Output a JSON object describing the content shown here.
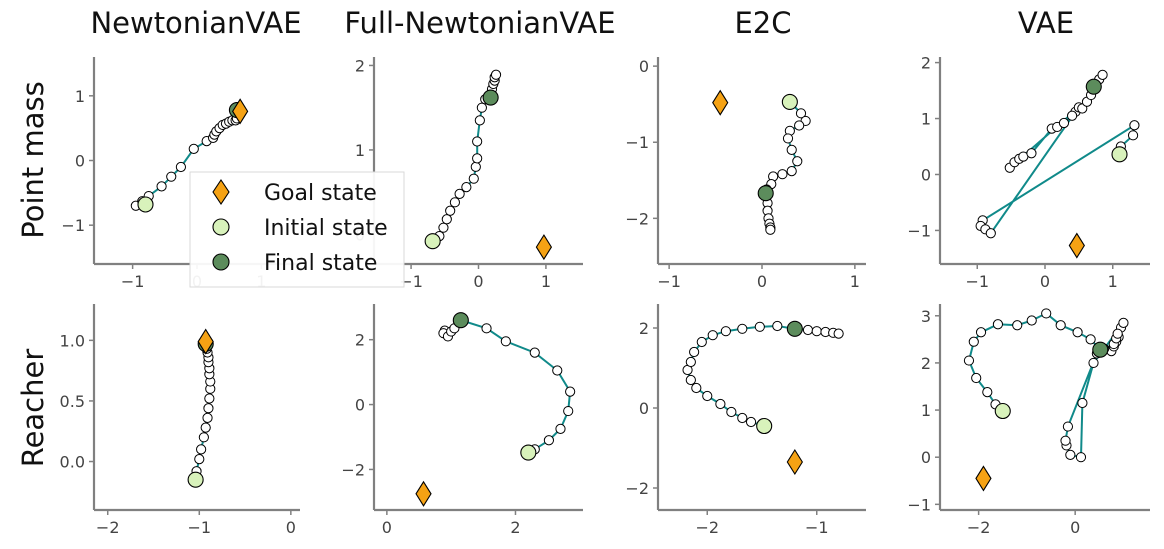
{
  "colors": {
    "trajectory": "#108a8a",
    "goal": "#f5a214",
    "initial": "#d8f2bb",
    "final": "#5c8c5c",
    "intermediate": "#ffffff",
    "axis": "#808080"
  },
  "column_titles": [
    "NewtonianVAE",
    "Full-NewtonianVAE",
    "E2C",
    "VAE"
  ],
  "row_titles": [
    "Point mass",
    "Reacher"
  ],
  "legend": {
    "placement": "overlapping Point mass row, NewtonianVAE / Full-NewtonianVAE panels",
    "items": [
      {
        "label": "Goal state",
        "marker": "diamond"
      },
      {
        "label": "Initial state",
        "marker": "circle-light"
      },
      {
        "label": "Final state",
        "marker": "circle-dark"
      }
    ]
  },
  "chart_data": [
    {
      "type": "scatter",
      "row": "Point mass",
      "column": "NewtonianVAE",
      "xlim": [
        -1.6,
        1.6
      ],
      "ylim": [
        -1.6,
        1.6
      ],
      "xticks": [
        -1,
        0,
        1
      ],
      "yticks": [
        -1,
        0,
        1
      ],
      "xtick_labels": [
        "−1",
        "0",
        "1"
      ],
      "ytick_labels": [
        "−1",
        "0",
        "1"
      ],
      "goal": [
        0.67,
        0.76
      ],
      "initial": [
        -0.8,
        -0.68
      ],
      "final": [
        0.62,
        0.78
      ],
      "trajectory": [
        [
          -0.8,
          -0.68
        ],
        [
          -0.95,
          -0.7
        ],
        [
          -0.85,
          -0.63
        ],
        [
          -0.75,
          -0.55
        ],
        [
          -0.55,
          -0.4
        ],
        [
          -0.4,
          -0.25
        ],
        [
          -0.25,
          -0.1
        ],
        [
          -0.05,
          0.18
        ],
        [
          0.15,
          0.3
        ],
        [
          0.25,
          0.35
        ],
        [
          0.27,
          0.4
        ],
        [
          0.3,
          0.45
        ],
        [
          0.35,
          0.5
        ],
        [
          0.4,
          0.55
        ],
        [
          0.45,
          0.57
        ],
        [
          0.5,
          0.6
        ],
        [
          0.55,
          0.62
        ],
        [
          0.6,
          0.62
        ],
        [
          0.62,
          0.65
        ],
        [
          0.62,
          0.78
        ]
      ]
    },
    {
      "type": "scatter",
      "row": "Point mass",
      "column": "Full-NewtonianVAE",
      "xlim": [
        -1.55,
        1.55
      ],
      "ylim": [
        -0.35,
        2.1
      ],
      "xticks": [
        -1,
        0,
        1
      ],
      "yticks": [
        0,
        1,
        2
      ],
      "xtick_labels": [
        "−1",
        "0",
        "1"
      ],
      "ytick_labels": [
        "0",
        "1",
        "2"
      ],
      "goal": [
        0.97,
        -0.15
      ],
      "initial": [
        -0.68,
        -0.08
      ],
      "final": [
        0.18,
        1.62
      ],
      "trajectory": [
        [
          -0.68,
          -0.08
        ],
        [
          -0.58,
          -0.02
        ],
        [
          -0.52,
          0.08
        ],
        [
          -0.47,
          0.18
        ],
        [
          -0.42,
          0.28
        ],
        [
          -0.35,
          0.38
        ],
        [
          -0.28,
          0.48
        ],
        [
          -0.18,
          0.56
        ],
        [
          -0.07,
          0.66
        ],
        [
          -0.04,
          0.8
        ],
        [
          -0.02,
          0.9
        ],
        [
          -0.02,
          1.1
        ],
        [
          0.02,
          1.35
        ],
        [
          0.05,
          1.5
        ],
        [
          0.1,
          1.6
        ],
        [
          0.18,
          1.62
        ],
        [
          0.2,
          1.72
        ],
        [
          0.22,
          1.78
        ],
        [
          0.24,
          1.82
        ],
        [
          0.24,
          1.86
        ],
        [
          0.26,
          1.89
        ]
      ]
    },
    {
      "type": "scatter",
      "row": "Point mass",
      "column": "E2C",
      "xlim": [
        -1.12,
        1.12
      ],
      "ylim": [
        -2.6,
        0.12
      ],
      "xticks": [
        -1,
        0,
        1
      ],
      "yticks": [
        -2,
        -1,
        0
      ],
      "xtick_labels": [
        "−1",
        "0",
        "1"
      ],
      "ytick_labels": [
        "−2",
        "−1",
        "0"
      ],
      "goal": [
        -0.45,
        -0.48
      ],
      "initial": [
        0.3,
        -0.47
      ],
      "final": [
        0.04,
        -1.67
      ],
      "trajectory": [
        [
          0.3,
          -0.47
        ],
        [
          0.42,
          -0.62
        ],
        [
          0.47,
          -0.72
        ],
        [
          0.4,
          -0.78
        ],
        [
          0.3,
          -0.85
        ],
        [
          0.28,
          -0.95
        ],
        [
          0.32,
          -1.1
        ],
        [
          0.38,
          -1.25
        ],
        [
          0.32,
          -1.38
        ],
        [
          0.22,
          -1.42
        ],
        [
          0.12,
          -1.45
        ],
        [
          0.1,
          -1.55
        ],
        [
          0.05,
          -1.62
        ],
        [
          0.04,
          -1.67
        ],
        [
          0.06,
          -1.8
        ],
        [
          0.06,
          -1.9
        ],
        [
          0.07,
          -2.0
        ],
        [
          0.08,
          -2.07
        ],
        [
          0.09,
          -2.12
        ],
        [
          0.09,
          -2.15
        ]
      ]
    },
    {
      "type": "scatter",
      "row": "Point mass",
      "column": "VAE",
      "xlim": [
        -1.55,
        1.55
      ],
      "ylim": [
        -1.6,
        2.1
      ],
      "xticks": [
        -1,
        0,
        1
      ],
      "yticks": [
        -1,
        0,
        1,
        2
      ],
      "xtick_labels": [
        "−1",
        "0",
        "1"
      ],
      "ytick_labels": [
        "−1",
        "0",
        "1",
        "2"
      ],
      "goal": [
        0.47,
        -1.27
      ],
      "initial": [
        1.1,
        0.36
      ],
      "final": [
        0.72,
        1.57
      ],
      "trajectory": [
        [
          1.1,
          0.36
        ],
        [
          1.12,
          0.5
        ],
        [
          1.3,
          0.7
        ],
        [
          1.32,
          0.88
        ],
        [
          -0.92,
          -0.82
        ],
        [
          -0.95,
          -0.92
        ],
        [
          -0.88,
          -0.98
        ],
        [
          -0.8,
          -1.05
        ],
        [
          0.45,
          1.12
        ],
        [
          0.5,
          1.2
        ],
        [
          -0.52,
          0.12
        ],
        [
          -0.45,
          0.22
        ],
        [
          -0.38,
          0.28
        ],
        [
          -0.32,
          0.32
        ],
        [
          -0.2,
          0.38
        ],
        [
          0.1,
          0.82
        ],
        [
          0.18,
          0.85
        ],
        [
          0.28,
          0.92
        ],
        [
          0.4,
          1.05
        ],
        [
          0.55,
          1.18
        ],
        [
          0.62,
          1.3
        ],
        [
          0.68,
          1.42
        ],
        [
          0.72,
          1.57
        ],
        [
          0.8,
          1.7
        ],
        [
          0.85,
          1.78
        ]
      ]
    },
    {
      "type": "scatter",
      "row": "Reacher",
      "column": "NewtonianVAE",
      "xlim": [
        -2.15,
        0.1
      ],
      "ylim": [
        -0.4,
        1.3
      ],
      "xticks": [
        -2,
        -1,
        0
      ],
      "yticks": [
        0.0,
        0.5,
        1.0
      ],
      "xtick_labels": [
        "−2",
        "−1",
        "0"
      ],
      "ytick_labels": [
        "0.0",
        "0.5",
        "1.0"
      ],
      "goal": [
        -0.93,
        0.99
      ],
      "initial": [
        -1.04,
        -0.15
      ],
      "final": [
        -0.93,
        0.97
      ],
      "trajectory": [
        [
          -1.04,
          -0.15
        ],
        [
          -1.03,
          -0.08
        ],
        [
          -1.0,
          0.02
        ],
        [
          -0.98,
          0.1
        ],
        [
          -0.95,
          0.2
        ],
        [
          -0.93,
          0.28
        ],
        [
          -0.91,
          0.36
        ],
        [
          -0.9,
          0.44
        ],
        [
          -0.89,
          0.52
        ],
        [
          -0.88,
          0.6
        ],
        [
          -0.88,
          0.66
        ],
        [
          -0.89,
          0.72
        ],
        [
          -0.89,
          0.77
        ],
        [
          -0.9,
          0.82
        ],
        [
          -0.9,
          0.86
        ],
        [
          -0.91,
          0.9
        ],
        [
          -0.92,
          0.93
        ],
        [
          -0.93,
          0.97
        ]
      ]
    },
    {
      "type": "scatter",
      "row": "Reacher",
      "column": "Full-NewtonianVAE",
      "xlim": [
        -0.2,
        3.05
      ],
      "ylim": [
        -3.25,
        3.1
      ],
      "xticks": [
        0,
        2
      ],
      "yticks": [
        -2,
        0,
        2
      ],
      "xtick_labels": [
        "0",
        "2"
      ],
      "ytick_labels": [
        "−2",
        "0",
        "2"
      ],
      "goal": [
        0.57,
        -2.75
      ],
      "initial": [
        2.2,
        -1.48
      ],
      "final": [
        1.15,
        2.6
      ],
      "trajectory": [
        [
          0.9,
          2.28
        ],
        [
          0.88,
          2.2
        ],
        [
          0.95,
          2.1
        ],
        [
          1.0,
          2.25
        ],
        [
          1.05,
          2.35
        ],
        [
          1.15,
          2.6
        ],
        [
          1.55,
          2.35
        ],
        [
          1.85,
          1.95
        ],
        [
          2.3,
          1.6
        ],
        [
          2.65,
          1.05
        ],
        [
          2.85,
          0.4
        ],
        [
          2.82,
          -0.2
        ],
        [
          2.7,
          -0.75
        ],
        [
          2.52,
          -1.1
        ],
        [
          2.3,
          -1.38
        ],
        [
          2.2,
          -1.48
        ]
      ]
    },
    {
      "type": "scatter",
      "row": "Reacher",
      "column": "E2C",
      "xlim": [
        -2.45,
        -0.55
      ],
      "ylim": [
        -2.55,
        2.6
      ],
      "xticks": [
        -2,
        -1
      ],
      "yticks": [
        -2,
        0,
        2
      ],
      "xtick_labels": [
        "−2",
        "−1"
      ],
      "ytick_labels": [
        "−2",
        "0",
        "2"
      ],
      "goal": [
        -1.2,
        -1.35
      ],
      "initial": [
        -1.48,
        -0.45
      ],
      "final": [
        -1.2,
        1.98
      ],
      "trajectory": [
        [
          -1.48,
          -0.45
        ],
        [
          -1.6,
          -0.35
        ],
        [
          -1.68,
          -0.25
        ],
        [
          -1.78,
          -0.1
        ],
        [
          -1.88,
          0.1
        ],
        [
          -2.0,
          0.3
        ],
        [
          -2.1,
          0.5
        ],
        [
          -2.15,
          0.7
        ],
        [
          -2.18,
          0.95
        ],
        [
          -2.15,
          1.15
        ],
        [
          -2.12,
          1.4
        ],
        [
          -2.05,
          1.65
        ],
        [
          -1.95,
          1.82
        ],
        [
          -1.83,
          1.92
        ],
        [
          -1.68,
          1.98
        ],
        [
          -1.52,
          2.03
        ],
        [
          -1.36,
          2.05
        ],
        [
          -1.2,
          1.98
        ],
        [
          -1.08,
          1.95
        ],
        [
          -1.0,
          1.92
        ],
        [
          -0.92,
          1.9
        ],
        [
          -0.85,
          1.88
        ],
        [
          -0.8,
          1.86
        ]
      ]
    },
    {
      "type": "scatter",
      "row": "Reacher",
      "column": "VAE",
      "xlim": [
        -2.8,
        1.55
      ],
      "ylim": [
        -1.12,
        3.25
      ],
      "xticks": [
        -2,
        0
      ],
      "yticks": [
        -1,
        0,
        1,
        2,
        3
      ],
      "xtick_labels": [
        "−2",
        "0"
      ],
      "ytick_labels": [
        "−1",
        "0",
        "1",
        "2",
        "3"
      ],
      "goal": [
        -1.9,
        -0.45
      ],
      "initial": [
        -1.5,
        0.98
      ],
      "final": [
        0.52,
        2.28
      ],
      "trajectory": [
        [
          -1.5,
          0.98
        ],
        [
          -1.65,
          1.12
        ],
        [
          -1.82,
          1.38
        ],
        [
          -2.05,
          1.68
        ],
        [
          -2.2,
          2.05
        ],
        [
          -2.1,
          2.45
        ],
        [
          -1.95,
          2.65
        ],
        [
          -1.6,
          2.82
        ],
        [
          -1.2,
          2.8
        ],
        [
          -0.9,
          2.9
        ],
        [
          -0.6,
          3.05
        ],
        [
          -0.3,
          2.8
        ],
        [
          0.05,
          2.65
        ],
        [
          0.32,
          2.5
        ],
        [
          0.52,
          2.28
        ],
        [
          0.75,
          2.25
        ],
        [
          0.8,
          2.35
        ],
        [
          0.85,
          2.45
        ],
        [
          0.9,
          2.55
        ],
        [
          0.95,
          2.75
        ],
        [
          1.0,
          2.85
        ],
        [
          0.38,
          2.0
        ],
        [
          0.15,
          1.15
        ],
        [
          0.12,
          0.0
        ],
        [
          -0.1,
          0.05
        ],
        [
          -0.18,
          0.25
        ],
        [
          -0.2,
          0.35
        ],
        [
          -0.15,
          0.65
        ],
        [
          0.45,
          2.2
        ],
        [
          0.6,
          2.3
        ],
        [
          0.8,
          2.4
        ],
        [
          0.85,
          2.52
        ],
        [
          0.88,
          2.62
        ]
      ]
    }
  ]
}
